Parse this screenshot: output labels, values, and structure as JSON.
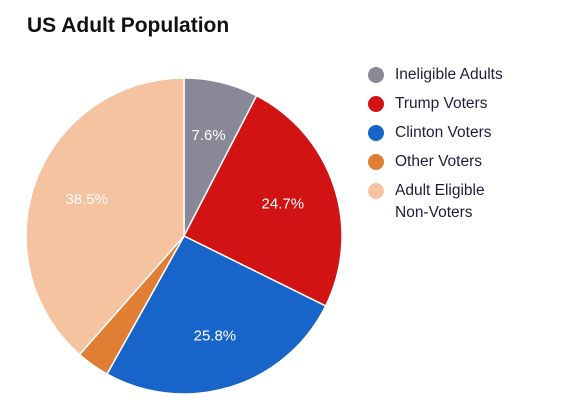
{
  "chart_data": {
    "type": "pie",
    "title": "US Adult Population",
    "start_angle_deg": 0,
    "direction": "clockwise",
    "legend_position": "right",
    "slices": [
      {
        "name": "Ineligible Adults",
        "value": 7.6,
        "label": "7.6%",
        "color": "#888896"
      },
      {
        "name": "Trump Voters",
        "value": 24.7,
        "label": "24.7%",
        "color": "#d11313"
      },
      {
        "name": "Clinton Voters",
        "value": 25.8,
        "label": "25.8%",
        "color": "#1865c9"
      },
      {
        "name": "Other Voters",
        "value": 3.4,
        "label": "",
        "color": "#e07e34"
      },
      {
        "name": "Adult Eligible\nNon-Voters",
        "value": 38.5,
        "label": "38.5%",
        "color": "#f6c3a0"
      }
    ]
  }
}
